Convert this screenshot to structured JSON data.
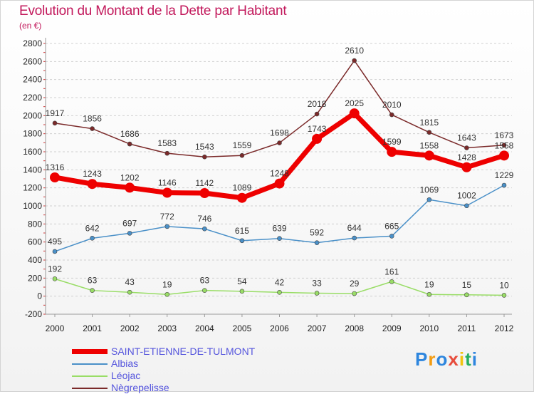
{
  "title": "Evolution du Montant de la Dette par Habitant",
  "subtitle": "(en €)",
  "brand": {
    "letters": [
      "P",
      "r",
      "o",
      "x",
      "i",
      "t",
      "i"
    ],
    "colors": [
      "#2e86de",
      "#f39c12",
      "#2e86de",
      "#e74c3c",
      "#f1c40f",
      "#27ae60",
      "#2e86de"
    ]
  },
  "chart_data": {
    "type": "line",
    "title": "Evolution du Montant de la Dette par Habitant",
    "ylabel": "(en €)",
    "xlabel": "",
    "x": [
      "2000",
      "2001",
      "2002",
      "2003",
      "2004",
      "2005",
      "2006",
      "2007",
      "2008",
      "2009",
      "2010",
      "2011",
      "2012"
    ],
    "ylim": [
      -200,
      2800
    ],
    "yticks": [
      "-200",
      "0",
      "200",
      "400",
      "600",
      "800",
      "1000",
      "1200",
      "1400",
      "1600",
      "1800",
      "2000",
      "2200",
      "2400",
      "2600",
      "2800"
    ],
    "grid": "horizontal",
    "legend_position": "bottom-left",
    "series": [
      {
        "name": "SAINT-ETIENNE-DE-TULMONT",
        "color": "#ee0000",
        "values": [
          1316,
          1243,
          1202,
          1146,
          1142,
          1089,
          1248,
          1743,
          2025,
          1599,
          1558,
          1428,
          1558
        ],
        "labels": [
          "1316",
          "1243",
          "1202",
          "1146",
          "1142",
          "1089",
          "1248",
          "1743",
          "2025",
          "1599",
          "1558",
          "1428",
          "1558"
        ]
      },
      {
        "name": "Albias",
        "color": "#4a90c8",
        "values": [
          495,
          642,
          697,
          772,
          746,
          615,
          639,
          592,
          644,
          665,
          1069,
          1002,
          1229
        ],
        "labels": [
          "495",
          "642",
          "697",
          "772",
          "746",
          "615",
          "639",
          "592",
          "644",
          "665",
          "1069",
          "1002",
          "1229"
        ]
      },
      {
        "name": "Léojac",
        "color": "#99dd66",
        "values": [
          192,
          63,
          43,
          19,
          63,
          54,
          42,
          33,
          29,
          161,
          19,
          15,
          10
        ],
        "labels": [
          "192",
          "63",
          "43",
          "19",
          "63",
          "54",
          "42",
          "33",
          "29",
          "161",
          "19",
          "15",
          "10"
        ]
      },
      {
        "name": "Nègrepelisse",
        "color": "#7b2a2a",
        "values": [
          1917,
          1856,
          1686,
          1583,
          1543,
          1559,
          1698,
          2018,
          2610,
          2010,
          1815,
          1643,
          1673
        ],
        "labels": [
          "1917",
          "1856",
          "1686",
          "1583",
          "1543",
          "1559",
          "1698",
          "2018",
          "2610",
          "2010",
          "1815",
          "1643",
          "1673"
        ]
      }
    ]
  }
}
